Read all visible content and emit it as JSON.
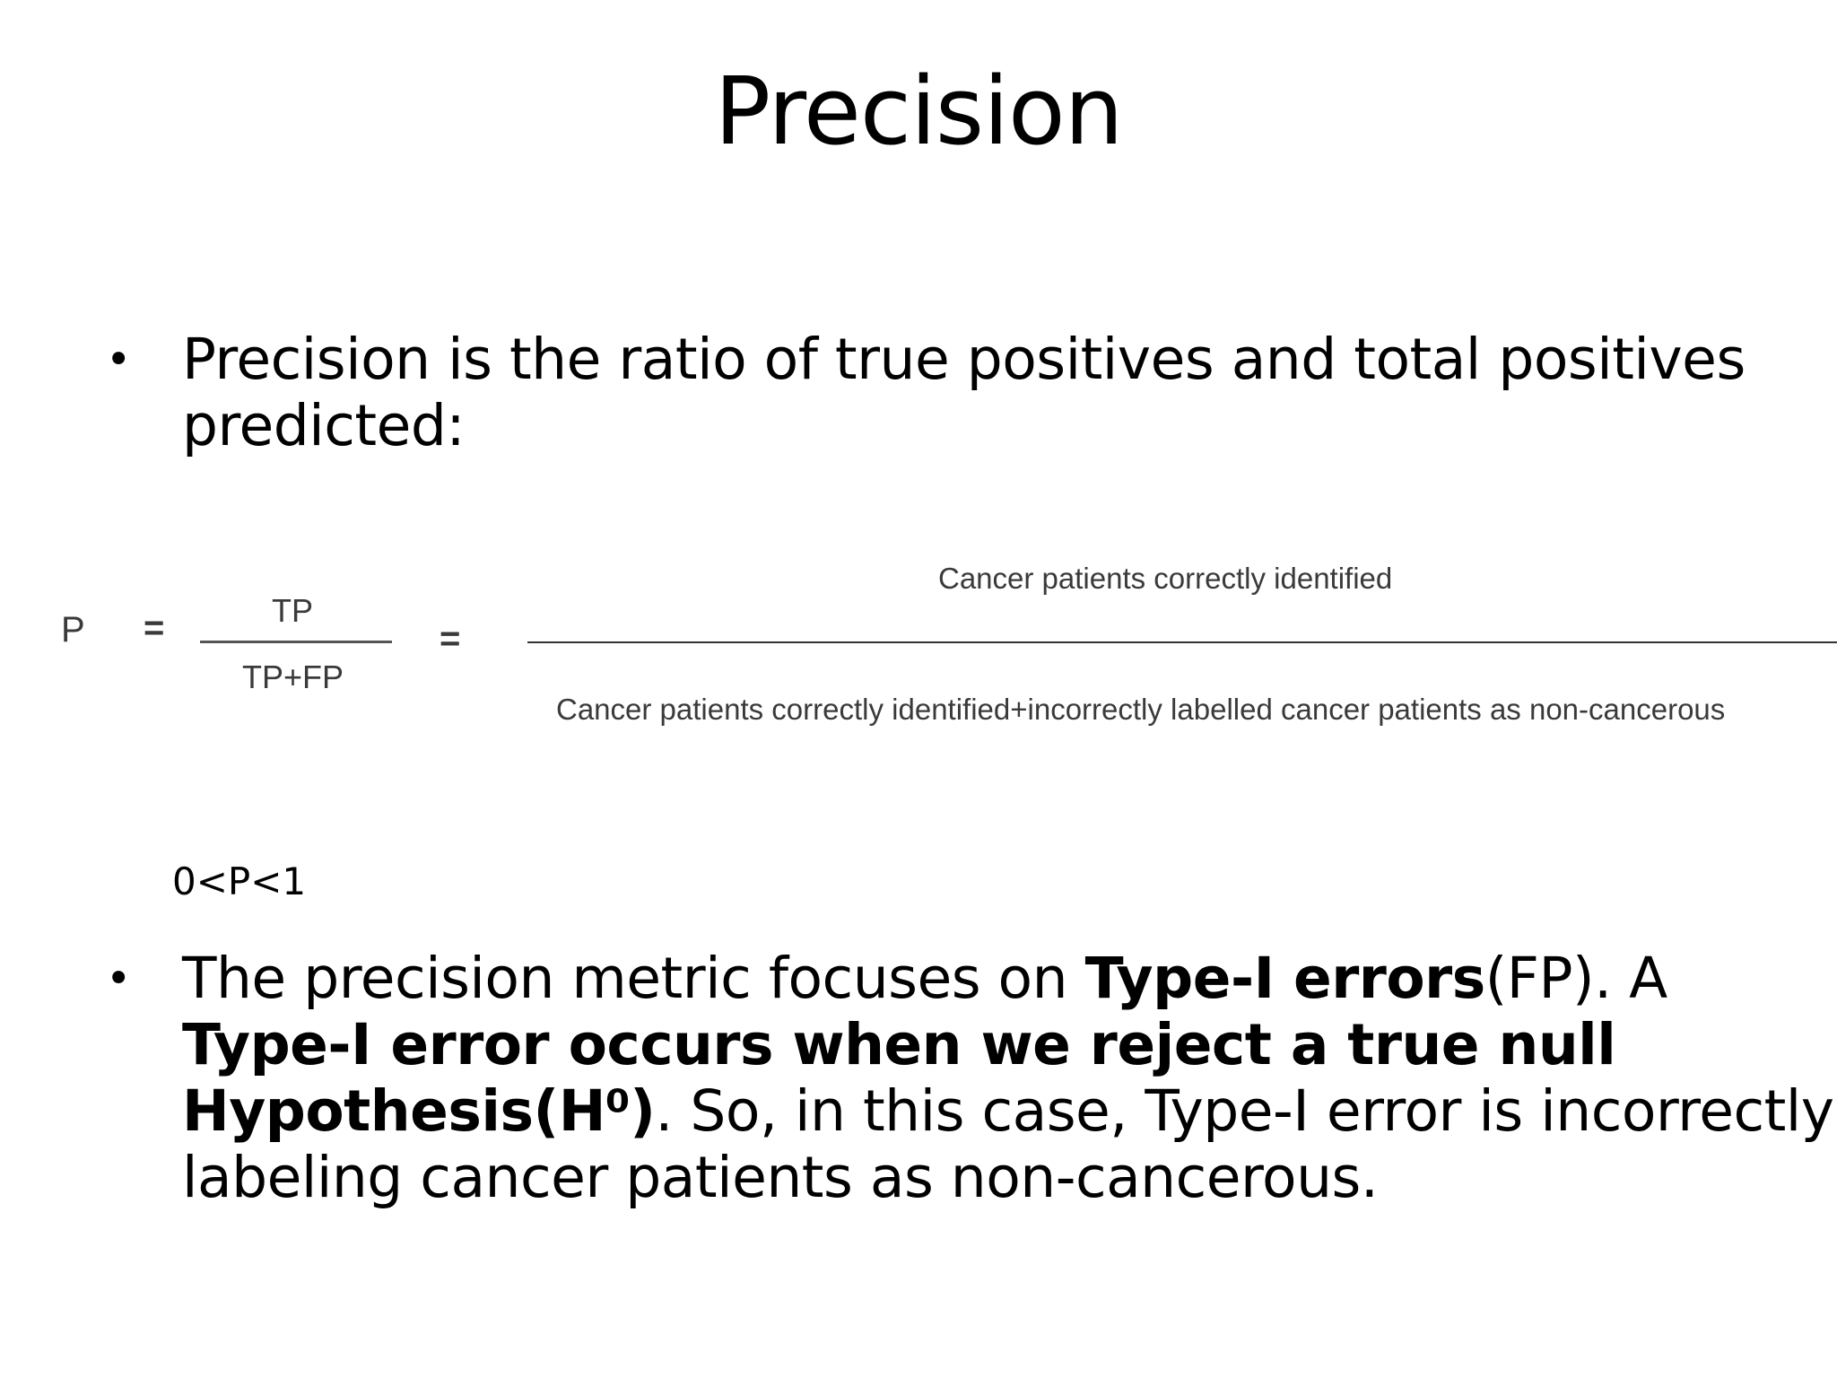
{
  "title": "Precision",
  "bullets": [
    {
      "text": "Precision is the ratio of true positives and total positives predicted:"
    },
    {
      "part1": "The precision metric focuses on ",
      "bold1": "Type-I errors",
      "part2": "(FP). A ",
      "bold2": "Type-I error occurs when we reject a true null Hypothesis(H⁰)",
      "part3": ". So, in this case, Type-I error is incorrectly labeling cancer patients as non-cancerous."
    }
  ],
  "formula": {
    "symbol": "P",
    "equals": "=",
    "numerator_short": "TP",
    "denominator_short": "TP+FP",
    "numerator_long": "Cancer patients correctly identified",
    "denominator_long": "Cancer patients correctly identified+incorrectly labelled cancer patients as non-cancerous"
  },
  "range_note": "0<P<1"
}
